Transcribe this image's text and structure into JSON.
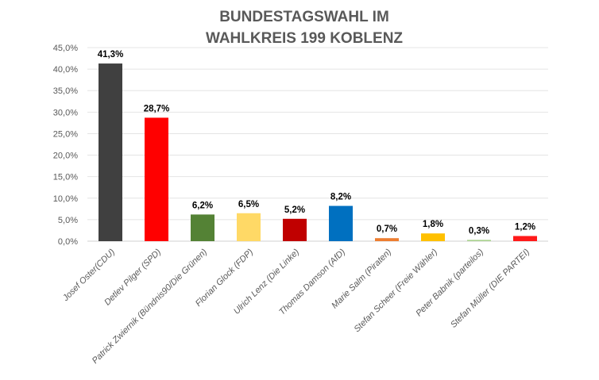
{
  "chart_data": {
    "type": "bar",
    "title": [
      "BUNDESTAGSWAHL IM",
      "WAHLKREIS 199 KOBLENZ"
    ],
    "xlabel": "",
    "ylabel": "",
    "ylim": [
      0,
      45
    ],
    "yticks": [
      "0,0%",
      "5,0%",
      "10,0%",
      "15,0%",
      "20,0%",
      "25,0%",
      "30,0%",
      "35,0%",
      "40,0%",
      "45,0%"
    ],
    "grid": true,
    "categories": [
      "Josef Oster(CDU)",
      "Detlev Pilger (SPD)",
      "Patrick Zwiernik (Bündnis90/Die Grünen)",
      "Florian Glock (FDP)",
      "Ulrich Lenz (Die Linke)",
      "Thomas Damson (AfD)",
      "Marie Salm (Piraten)",
      "Stefan Scheer (Freie Wähler)",
      "Peter Babnik (parteilos)",
      "Stefan Müller (DIE PARTEI)"
    ],
    "values": [
      41.3,
      28.7,
      6.2,
      6.5,
      5.2,
      8.2,
      0.7,
      1.8,
      0.3,
      1.2
    ],
    "data_labels": [
      "41,3%",
      "28,7%",
      "6,2%",
      "6,5%",
      "5,2%",
      "8,2%",
      "0,7%",
      "1,8%",
      "0,3%",
      "1,2%"
    ],
    "colors": [
      "#404040",
      "#ff0000",
      "#548235",
      "#ffd966",
      "#c00000",
      "#0070c0",
      "#ed7d31",
      "#ffc000",
      "#a9d18e",
      "#ff1a1a"
    ]
  }
}
